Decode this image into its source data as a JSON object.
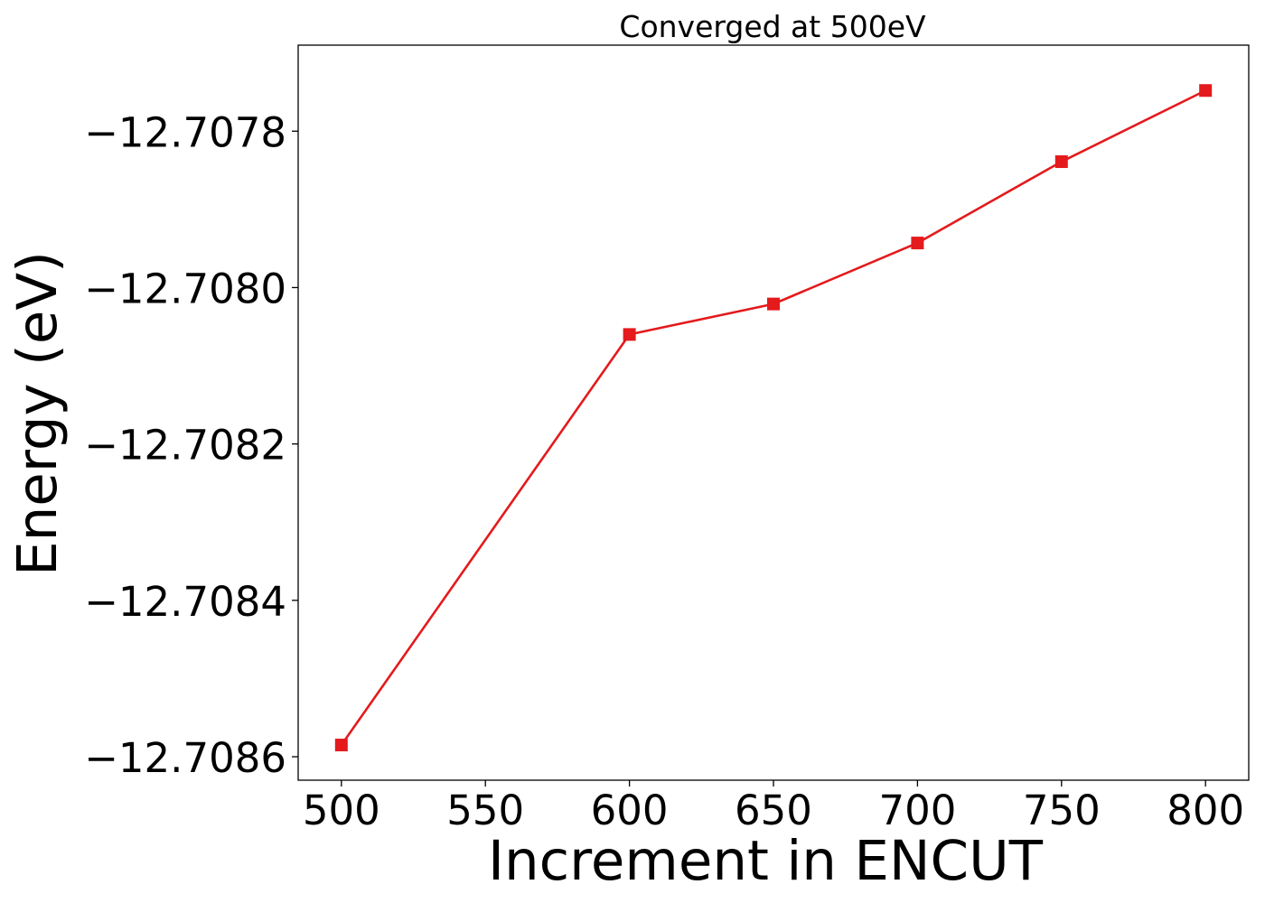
{
  "chart_data": {
    "type": "line",
    "title": "Converged at 500eV",
    "xlabel": "Increment in ENCUT",
    "ylabel": "Energy (eV)",
    "x_ticks": [
      500,
      550,
      600,
      650,
      700,
      750,
      800
    ],
    "x_tick_labels": [
      "500",
      "550",
      "600",
      "650",
      "700",
      "750",
      "800"
    ],
    "y_ticks": [
      -12.7078,
      -12.708,
      -12.7082,
      -12.7084,
      -12.7086
    ],
    "y_tick_labels": [
      "−12.7078",
      "−12.7080",
      "−12.7082",
      "−12.7084",
      "−12.7086"
    ],
    "xlim": [
      485,
      815
    ],
    "ylim": [
      -12.70863,
      -12.70769
    ],
    "grid": false,
    "series": [
      {
        "color": "#e41a1c",
        "marker": "square",
        "x": [
          500,
          600,
          650,
          700,
          750,
          800
        ],
        "y": [
          -12.708585,
          -12.70806,
          -12.708021,
          -12.707943,
          -12.707839,
          -12.707748
        ]
      }
    ]
  }
}
